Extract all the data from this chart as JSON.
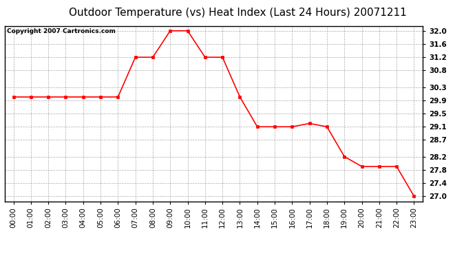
{
  "title": "Outdoor Temperature (vs) Heat Index (Last 24 Hours) 20071211",
  "copyright_text": "Copyright 2007 Cartronics.com",
  "x_labels": [
    "00:00",
    "01:00",
    "02:00",
    "03:00",
    "04:00",
    "05:00",
    "06:00",
    "07:00",
    "08:00",
    "09:00",
    "10:00",
    "11:00",
    "12:00",
    "13:00",
    "14:00",
    "15:00",
    "16:00",
    "17:00",
    "18:00",
    "19:00",
    "20:00",
    "21:00",
    "22:00",
    "23:00"
  ],
  "y_values": [
    30.0,
    30.0,
    30.0,
    30.0,
    30.0,
    30.0,
    30.0,
    31.2,
    31.2,
    32.0,
    32.0,
    31.2,
    31.2,
    30.0,
    29.1,
    29.1,
    29.1,
    29.2,
    29.1,
    28.2,
    27.9,
    27.9,
    27.9,
    27.0
  ],
  "line_color": "#ff0000",
  "marker": "s",
  "marker_size": 2.5,
  "marker_color": "#ff0000",
  "y_ticks": [
    27.0,
    27.4,
    27.8,
    28.2,
    28.7,
    29.1,
    29.5,
    29.9,
    30.3,
    30.8,
    31.2,
    31.6,
    32.0
  ],
  "ylim": [
    26.85,
    32.15
  ],
  "background_color": "#ffffff",
  "grid_color": "#aaaaaa",
  "title_fontsize": 11,
  "copyright_fontsize": 6.5,
  "axis_label_fontsize": 7.5
}
